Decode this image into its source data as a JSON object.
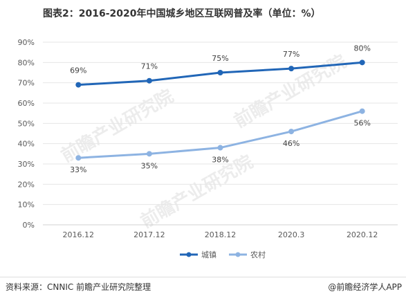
{
  "title": "图表2：2016-2020年中国城乡地区互联网普及率（单位：%）",
  "watermark": "前瞻产业研究院",
  "footer": {
    "source": "资料来源：CNNIC 前瞻产业研究院整理",
    "brand": "@前瞻经济学人APP"
  },
  "colors": {
    "urban": "#2166b7",
    "rural": "#8db3e2",
    "grid": "#e6e6e6",
    "axis": "#d0d0d0",
    "text": "#595959"
  },
  "chart_data": {
    "type": "line",
    "categories": [
      "2016.12",
      "2017.12",
      "2018.12",
      "2020.3",
      "2020.12"
    ],
    "series": [
      {
        "name": "城镇",
        "values": [
          69,
          71,
          75,
          77,
          80
        ],
        "labels": [
          "69%",
          "71%",
          "75%",
          "77%",
          "80%"
        ]
      },
      {
        "name": "农村",
        "values": [
          33,
          35,
          38,
          46,
          56
        ],
        "labels": [
          "33%",
          "35%",
          "38%",
          "46%",
          "56%"
        ]
      }
    ],
    "ylim": [
      0,
      90
    ],
    "yticks": [
      "0%",
      "10%",
      "20%",
      "30%",
      "40%",
      "50%",
      "60%",
      "70%",
      "80%",
      "90%"
    ],
    "grid": true,
    "legend": "bottom-center"
  }
}
